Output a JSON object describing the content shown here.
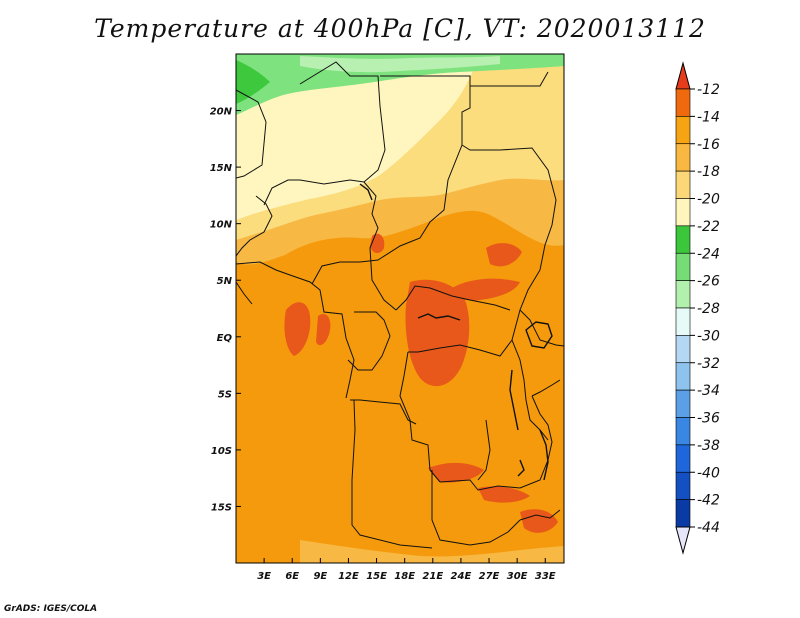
{
  "title": "Temperature at 400hPa [C], VT: 2020013112",
  "credit": "GrADS: IGES/COLA",
  "map": {
    "lon_range": [
      0,
      35
    ],
    "lat_range": [
      -20,
      25
    ],
    "lon_ticks": [
      {
        "value": 3,
        "label": "3E"
      },
      {
        "value": 6,
        "label": "6E"
      },
      {
        "value": 9,
        "label": "9E"
      },
      {
        "value": 12,
        "label": "12E"
      },
      {
        "value": 15,
        "label": "15E"
      },
      {
        "value": 18,
        "label": "18E"
      },
      {
        "value": 21,
        "label": "21E"
      },
      {
        "value": 24,
        "label": "24E"
      },
      {
        "value": 27,
        "label": "27E"
      },
      {
        "value": 30,
        "label": "30E"
      },
      {
        "value": 33,
        "label": "33E"
      }
    ],
    "lat_ticks": [
      {
        "value": 20,
        "label": "20N"
      },
      {
        "value": 15,
        "label": "15N"
      },
      {
        "value": 10,
        "label": "10N"
      },
      {
        "value": 5,
        "label": "5N"
      },
      {
        "value": 0,
        "label": "EQ"
      },
      {
        "value": -5,
        "label": "5S"
      },
      {
        "value": -10,
        "label": "10S"
      },
      {
        "value": -15,
        "label": "15S"
      }
    ],
    "fill_colors": {
      "warmest": "#e8581a",
      "warm": "#f49a0c",
      "mid": "#f7b844",
      "cool": "#fbdd7d",
      "cooler": "#fff6bf",
      "green": "#7ee37e",
      "dark_green": "#3ec83e",
      "light_green": "#b7f0b0"
    }
  },
  "colorbar": {
    "levels": [
      "-12",
      "-14",
      "-16",
      "-18",
      "-20",
      "-22",
      "-24",
      "-26",
      "-28",
      "-30",
      "-32",
      "-34",
      "-36",
      "-38",
      "-40",
      "-42",
      "-44"
    ],
    "colors": [
      "#e63c1c",
      "#ef6a0e",
      "#f6a314",
      "#f8b842",
      "#fcd777",
      "#fff5bd",
      "#3cc63c",
      "#76dd76",
      "#b2f0ad",
      "#e6fbf8",
      "#b4d8f3",
      "#8ec3ee",
      "#5c9fe6",
      "#3a86e3",
      "#1e66d9",
      "#1450c2",
      "#0a3aa4",
      "#0a1a7a",
      "#e6e6fa"
    ]
  }
}
